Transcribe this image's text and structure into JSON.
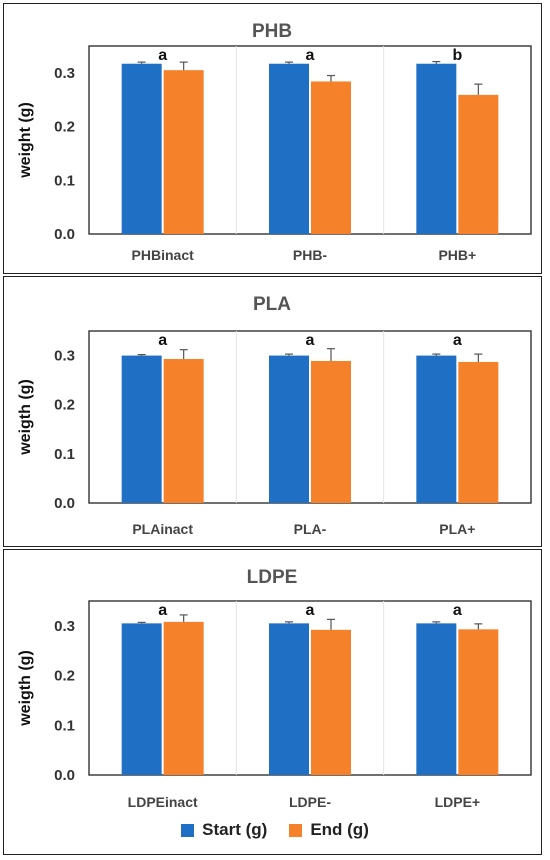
{
  "colors": {
    "start": "#1f6fc5",
    "end": "#f5822a",
    "axis": "#333333",
    "text": "#333333"
  },
  "legend": {
    "start_label": "Start (g)",
    "end_label": "End (g)"
  },
  "chart_data": [
    {
      "type": "bar",
      "title": "PHB",
      "ylabel": "weight (g)",
      "ylim": [
        0,
        0.35
      ],
      "yticks": [
        "0.0",
        "0.1",
        "0.2",
        "0.3"
      ],
      "categories": [
        "PHBinact",
        "PHB-",
        "PHB+"
      ],
      "series": [
        {
          "name": "Start (g)",
          "values": [
            0.317,
            0.317,
            0.317
          ],
          "errors": [
            0.003,
            0.003,
            0.004
          ]
        },
        {
          "name": "End (g)",
          "values": [
            0.305,
            0.284,
            0.259
          ],
          "errors": [
            0.015,
            0.011,
            0.02
          ]
        }
      ],
      "letters": [
        "a",
        "a",
        "b"
      ],
      "grid": false
    },
    {
      "type": "bar",
      "title": "PLA",
      "ylabel": "weigth (g)",
      "ylim": [
        0,
        0.35
      ],
      "yticks": [
        "0.0",
        "0.1",
        "0.2",
        "0.3"
      ],
      "categories": [
        "PLAinact",
        "PLA-",
        "PLA+"
      ],
      "series": [
        {
          "name": "Start (g)",
          "values": [
            0.3,
            0.3,
            0.3
          ],
          "errors": [
            0.002,
            0.003,
            0.003
          ]
        },
        {
          "name": "End (g)",
          "values": [
            0.293,
            0.289,
            0.287
          ],
          "errors": [
            0.019,
            0.025,
            0.016
          ]
        }
      ],
      "letters": [
        "a",
        "a",
        "a"
      ],
      "grid": false
    },
    {
      "type": "bar",
      "title": "LDPE",
      "ylabel": "weigth (g)",
      "ylim": [
        0,
        0.35
      ],
      "yticks": [
        "0.0",
        "0.1",
        "0.2",
        "0.3"
      ],
      "categories": [
        "LDPEinact",
        "LDPE-",
        "LDPE+"
      ],
      "series": [
        {
          "name": "Start (g)",
          "values": [
            0.305,
            0.305,
            0.305
          ],
          "errors": [
            0.002,
            0.003,
            0.003
          ]
        },
        {
          "name": "End (g)",
          "values": [
            0.308,
            0.292,
            0.293
          ],
          "errors": [
            0.014,
            0.021,
            0.011
          ]
        }
      ],
      "letters": [
        "a",
        "a",
        "a"
      ],
      "grid": false
    }
  ]
}
